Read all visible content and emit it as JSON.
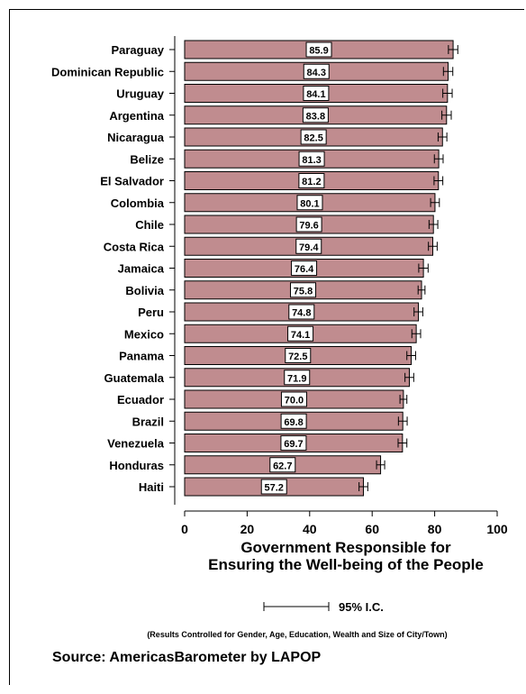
{
  "chart_data": {
    "type": "bar",
    "orientation": "horizontal",
    "categories": [
      "Paraguay",
      "Dominican Republic",
      "Uruguay",
      "Argentina",
      "Nicaragua",
      "Belize",
      "El Salvador",
      "Colombia",
      "Chile",
      "Costa Rica",
      "Jamaica",
      "Bolivia",
      "Peru",
      "Mexico",
      "Panama",
      "Guatemala",
      "Ecuador",
      "Brazil",
      "Venezuela",
      "Honduras",
      "Haiti"
    ],
    "values": [
      85.9,
      84.3,
      84.1,
      83.8,
      82.5,
      81.3,
      81.2,
      80.1,
      79.6,
      79.4,
      76.4,
      75.8,
      74.8,
      74.1,
      72.5,
      71.9,
      70.0,
      69.8,
      69.7,
      62.7,
      57.2
    ],
    "ci_halfwidth": [
      1.5,
      1.5,
      1.5,
      1.5,
      1.4,
      1.4,
      1.4,
      1.4,
      1.4,
      1.4,
      1.5,
      1.1,
      1.4,
      1.4,
      1.4,
      1.4,
      1.1,
      1.4,
      1.4,
      1.3,
      1.4
    ],
    "value_labels": [
      "85.9",
      "84.3",
      "84.1",
      "83.8",
      "82.5",
      "81.3",
      "81.2",
      "80.1",
      "79.6",
      "79.4",
      "76.4",
      "75.8",
      "74.8",
      "74.1",
      "72.5",
      "71.9",
      "70.0",
      "69.8",
      "69.7",
      "62.7",
      "57.2"
    ],
    "xlim": [
      0,
      100
    ],
    "xticks": [
      0,
      20,
      40,
      60,
      80,
      100
    ],
    "xlabel_line1": "Government Responsible for",
    "xlabel_line2": "Ensuring the Well-being of the People",
    "legend_label": "95% I.C.",
    "note": "(Results Controlled for Gender, Age, Education, Wealth and Size of City/Town)",
    "source": "Source: AmericasBarometer by  LAPOP",
    "bar_color": "#C08C8F",
    "grid": false
  }
}
